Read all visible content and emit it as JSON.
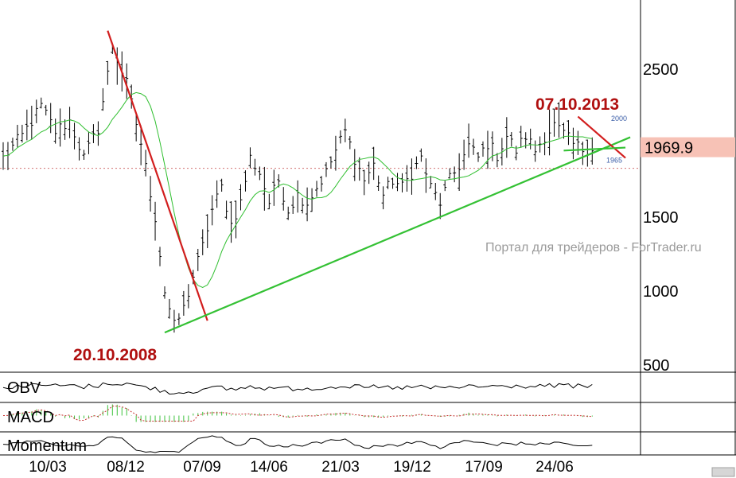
{
  "chart_data": {
    "type": "line",
    "y_range": [
      500,
      2800
    ],
    "y_ticks": [
      "2500",
      "1500",
      "1000",
      "500"
    ],
    "y_tick_values": [
      2500,
      1500,
      1000,
      500
    ],
    "x_ticks": [
      "10/03",
      "08/12",
      "07/09",
      "14/06",
      "21/03",
      "19/12",
      "17/09",
      "24/06"
    ],
    "last_price": "1969.9",
    "last_price_value": 1969.9,
    "level_labels": [
      {
        "text": "2000",
        "value": 2000
      },
      {
        "text": "1965",
        "value": 1965
      }
    ],
    "annotations": [
      {
        "text": "20.10.2008"
      },
      {
        "text": "07.10.2013"
      }
    ],
    "watermark": "Портал для трейдеров - ForTrader.ru",
    "price_series_anchors": [
      [
        0,
        1900
      ],
      [
        4,
        2050
      ],
      [
        8,
        2250
      ],
      [
        11,
        2080
      ],
      [
        14,
        2150
      ],
      [
        17,
        1900
      ],
      [
        20,
        2100
      ],
      [
        23,
        2650
      ],
      [
        26,
        2400
      ],
      [
        29,
        2000
      ],
      [
        32,
        1500
      ],
      [
        34,
        1000
      ],
      [
        36,
        760
      ],
      [
        38,
        880
      ],
      [
        40,
        1100
      ],
      [
        42,
        1300
      ],
      [
        44,
        1550
      ],
      [
        46,
        1700
      ],
      [
        48,
        1450
      ],
      [
        50,
        1600
      ],
      [
        52,
        1900
      ],
      [
        54,
        1800
      ],
      [
        56,
        1600
      ],
      [
        58,
        1750
      ],
      [
        60,
        1550
      ],
      [
        62,
        1650
      ],
      [
        64,
        1600
      ],
      [
        66,
        1700
      ],
      [
        68,
        1800
      ],
      [
        70,
        1950
      ],
      [
        72,
        2080
      ],
      [
        74,
        1900
      ],
      [
        76,
        1750
      ],
      [
        78,
        1850
      ],
      [
        80,
        1650
      ],
      [
        82,
        1750
      ],
      [
        84,
        1700
      ],
      [
        86,
        1800
      ],
      [
        88,
        1900
      ],
      [
        90,
        1700
      ],
      [
        92,
        1600
      ],
      [
        94,
        1750
      ],
      [
        96,
        1850
      ],
      [
        98,
        1980
      ],
      [
        100,
        1900
      ],
      [
        102,
        2000
      ],
      [
        104,
        1920
      ],
      [
        106,
        2050
      ],
      [
        108,
        1950
      ],
      [
        110,
        2050
      ],
      [
        112,
        1950
      ],
      [
        114,
        2050
      ],
      [
        116,
        2120
      ],
      [
        118,
        2060
      ],
      [
        120,
        1990
      ],
      [
        122,
        1960
      ],
      [
        124,
        1970
      ]
    ],
    "series": [
      {
        "name": "",
        "color": "#000000",
        "style": "ohlc-bars"
      },
      {
        "name": "",
        "color": "#2fbf2f",
        "style": "moving-average"
      }
    ],
    "trendlines": [
      {
        "color": "#d21e1e",
        "from": [
          22,
          2760
        ],
        "to": [
          43,
          800
        ]
      },
      {
        "color": "#34c134",
        "from": [
          34,
          720
        ],
        "to": [
          132,
          2040
        ]
      },
      {
        "color": "#d21e1e",
        "from": [
          121,
          2180
        ],
        "to": [
          131,
          1900
        ]
      },
      {
        "color": "#34c134",
        "from": [
          118,
          1950
        ],
        "to": [
          131,
          1970
        ]
      }
    ],
    "reference_line": {
      "value": 1830,
      "style": "dotted",
      "color": "#d07070"
    },
    "indicators": [
      {
        "label": "OBV"
      },
      {
        "label": "MACD"
      },
      {
        "label": "Momentum"
      }
    ],
    "colors": {
      "price": "#000000",
      "ma": "#2fbf2f",
      "trend_red": "#d21e1e",
      "trend_green": "#34c134",
      "price_box": "#f7c2b6",
      "annotation": "#b01010",
      "macd_hist": "#3cc23c",
      "macd_signal": "#c83232"
    },
    "grid": false,
    "legend": "none"
  }
}
